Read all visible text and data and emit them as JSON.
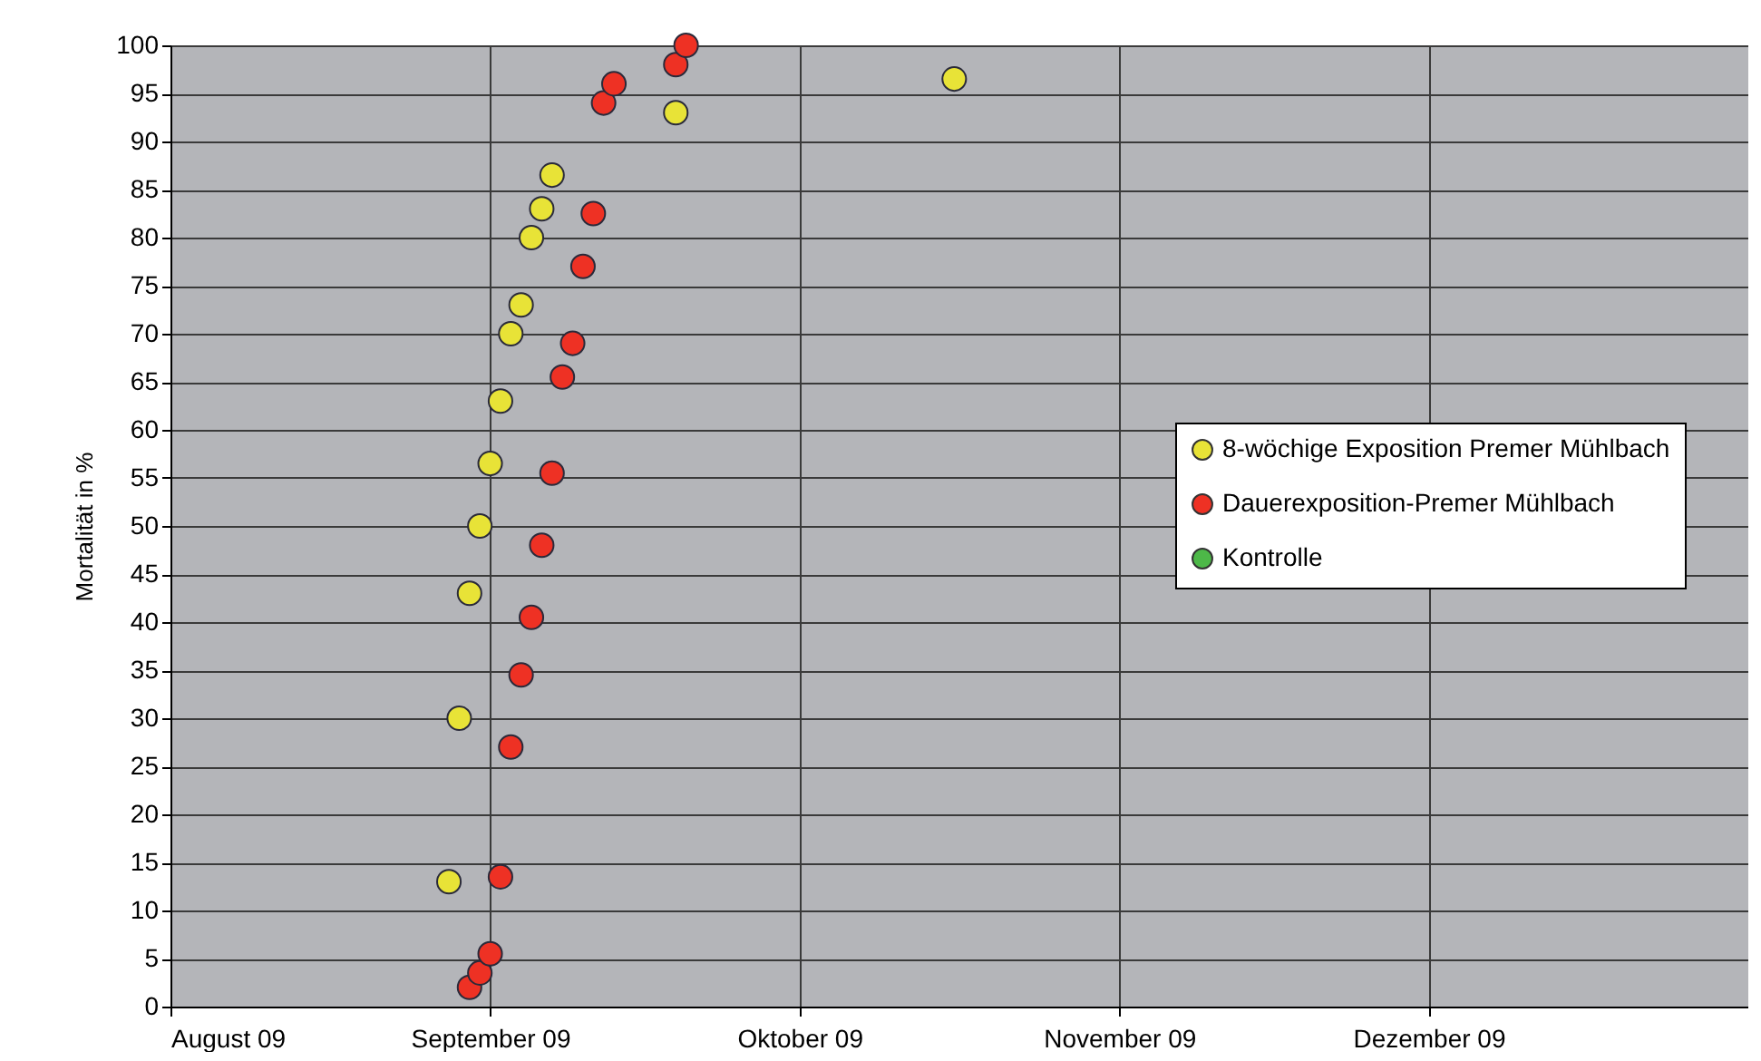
{
  "chart_data": {
    "type": "scatter",
    "ylabel": "Mortalität in %",
    "xlim": [
      "2009-08-01",
      "2010-01-01"
    ],
    "xticks": [
      {
        "value": "2009-08-01",
        "label": "August 09"
      },
      {
        "value": "2009-09-01",
        "label": "September 09"
      },
      {
        "value": "2009-10-01",
        "label": "Oktober 09"
      },
      {
        "value": "2009-11-01",
        "label": "November 09"
      },
      {
        "value": "2009-12-01",
        "label": "Dezember 09"
      }
    ],
    "ylim": [
      0,
      100
    ],
    "yticks": [
      0,
      5,
      10,
      15,
      20,
      25,
      30,
      35,
      40,
      45,
      50,
      55,
      60,
      65,
      70,
      75,
      80,
      85,
      90,
      95,
      100
    ],
    "grid": true,
    "legend": "right",
    "marker": "circle",
    "series": [
      {
        "name": "8-wöchige Exposition Premer Mühlbach",
        "color": "#e8e337",
        "x": [
          "2009-08-28",
          "2009-08-29",
          "2009-08-30",
          "2009-08-31",
          "2009-09-01",
          "2009-09-02",
          "2009-09-03",
          "2009-09-04",
          "2009-09-05",
          "2009-09-06",
          "2009-09-07",
          "2009-09-19",
          "2009-10-16"
        ],
        "values": [
          13,
          30,
          43,
          50,
          56.5,
          63,
          70,
          73,
          80,
          83,
          86.5,
          93,
          96.5
        ]
      },
      {
        "name": "Dauerexposition-Premer Mühlbach",
        "color": "#ee3124",
        "x": [
          "2009-08-30",
          "2009-08-31",
          "2009-09-01",
          "2009-09-02",
          "2009-09-03",
          "2009-09-04",
          "2009-09-05",
          "2009-09-06",
          "2009-09-07",
          "2009-09-08",
          "2009-09-09",
          "2009-09-10",
          "2009-09-11",
          "2009-09-12",
          "2009-09-13",
          "2009-09-19",
          "2009-09-20"
        ],
        "values": [
          2,
          3.5,
          5.5,
          13.5,
          27,
          34.5,
          40.5,
          48,
          55.5,
          65.5,
          69,
          77,
          82.5,
          94,
          96,
          98,
          100
        ]
      },
      {
        "name": "Kontrolle",
        "color": "#4db848"
      }
    ]
  }
}
